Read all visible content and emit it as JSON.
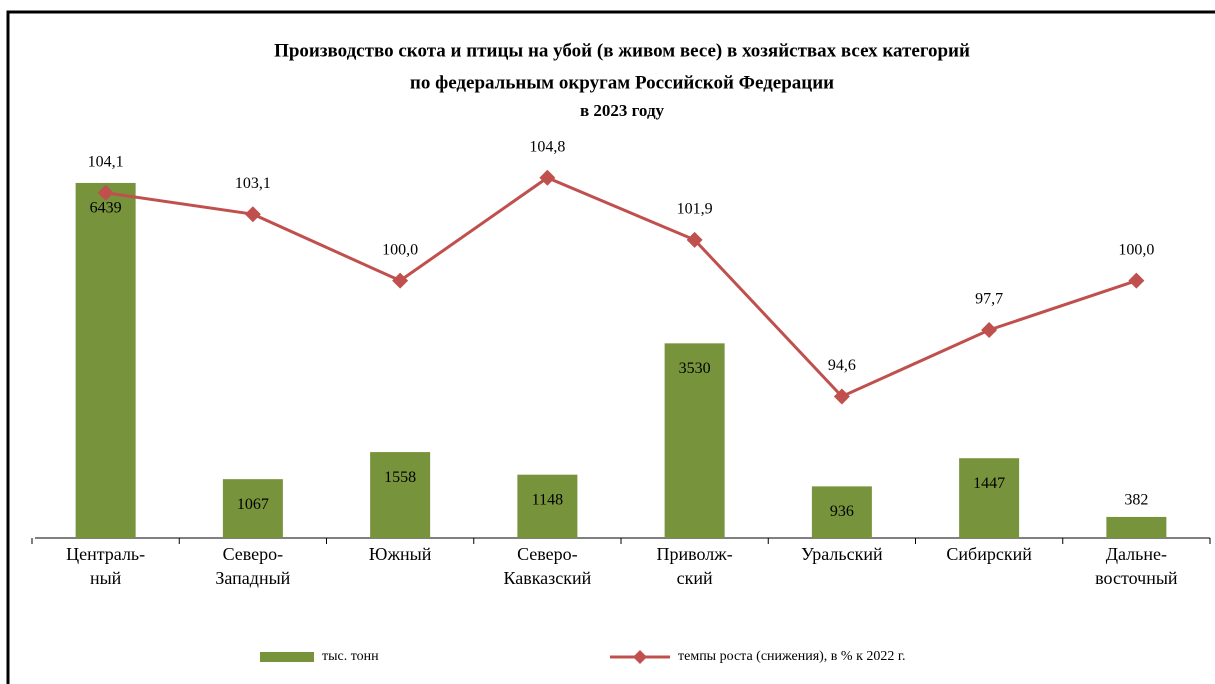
{
  "chart_data": {
    "type": "bar+line",
    "title": [
      "Производство скота и птицы на убой (в живом весе) в хозяйствах всех категорий",
      "по федеральным округам Российской Федерации"
    ],
    "subtitle": "в 2023 году",
    "categories": [
      [
        "Централь-",
        "ный"
      ],
      [
        "Северо-",
        "Западный"
      ],
      [
        "Южный"
      ],
      [
        "Северо-",
        "Кавказский"
      ],
      [
        "Приволж-",
        "ский"
      ],
      [
        "Уральский"
      ],
      [
        "Сибирский"
      ],
      [
        "Дальне-",
        "восточный"
      ]
    ],
    "series": [
      {
        "name": "тыс. тонн",
        "type": "bar",
        "color": "#77933c",
        "values": [
          6439,
          1067,
          1558,
          1148,
          3530,
          936,
          1447,
          382
        ]
      },
      {
        "name": "темпы роста (снижения), в % к 2022 г.",
        "type": "line",
        "axis": "y2",
        "color": "#c0504d",
        "values": [
          104.1,
          103.1,
          100.0,
          104.8,
          101.9,
          94.6,
          97.7,
          100.0
        ],
        "value_labels": [
          "104,1",
          "103,1",
          "100,0",
          "104,8",
          "101,9",
          "94,6",
          "97,7",
          "100,0"
        ]
      }
    ],
    "ylim": [
      0,
      7000
    ],
    "y2lim": [
      88,
      106
    ],
    "legend": "bottom"
  }
}
